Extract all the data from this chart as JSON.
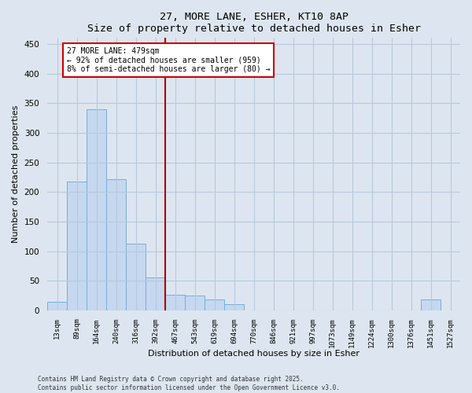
{
  "title": "27, MORE LANE, ESHER, KT10 8AP",
  "subtitle": "Size of property relative to detached houses in Esher",
  "xlabel": "Distribution of detached houses by size in Esher",
  "ylabel": "Number of detached properties",
  "bar_color": "#c5d8f0",
  "bar_edge_color": "#7aadd4",
  "background_color": "#dde6f0",
  "grid_color": "#b8c8dc",
  "categories": [
    "13sqm",
    "89sqm",
    "164sqm",
    "240sqm",
    "316sqm",
    "392sqm",
    "467sqm",
    "543sqm",
    "619sqm",
    "694sqm",
    "770sqm",
    "846sqm",
    "921sqm",
    "997sqm",
    "1073sqm",
    "1149sqm",
    "1224sqm",
    "1300sqm",
    "1376sqm",
    "1451sqm",
    "1527sqm"
  ],
  "values": [
    15,
    218,
    340,
    222,
    112,
    55,
    27,
    25,
    18,
    10,
    0,
    0,
    0,
    0,
    0,
    0,
    0,
    0,
    0,
    18,
    0
  ],
  "ylim": [
    0,
    460
  ],
  "yticks": [
    0,
    50,
    100,
    150,
    200,
    250,
    300,
    350,
    400,
    450
  ],
  "property_label": "27 MORE LANE: 479sqm",
  "annotation_line1": "← 92% of detached houses are smaller (959)",
  "annotation_line2": "8% of semi-detached houses are larger (80) →",
  "vline_color": "#aa0000",
  "annotation_box_color": "#ffffff",
  "annotation_box_edge": "#cc0000",
  "footer_line1": "Contains HM Land Registry data © Crown copyright and database right 2025.",
  "footer_line2": "Contains public sector information licensed under the Open Government Licence v3.0.",
  "vline_x_index": 6.0
}
